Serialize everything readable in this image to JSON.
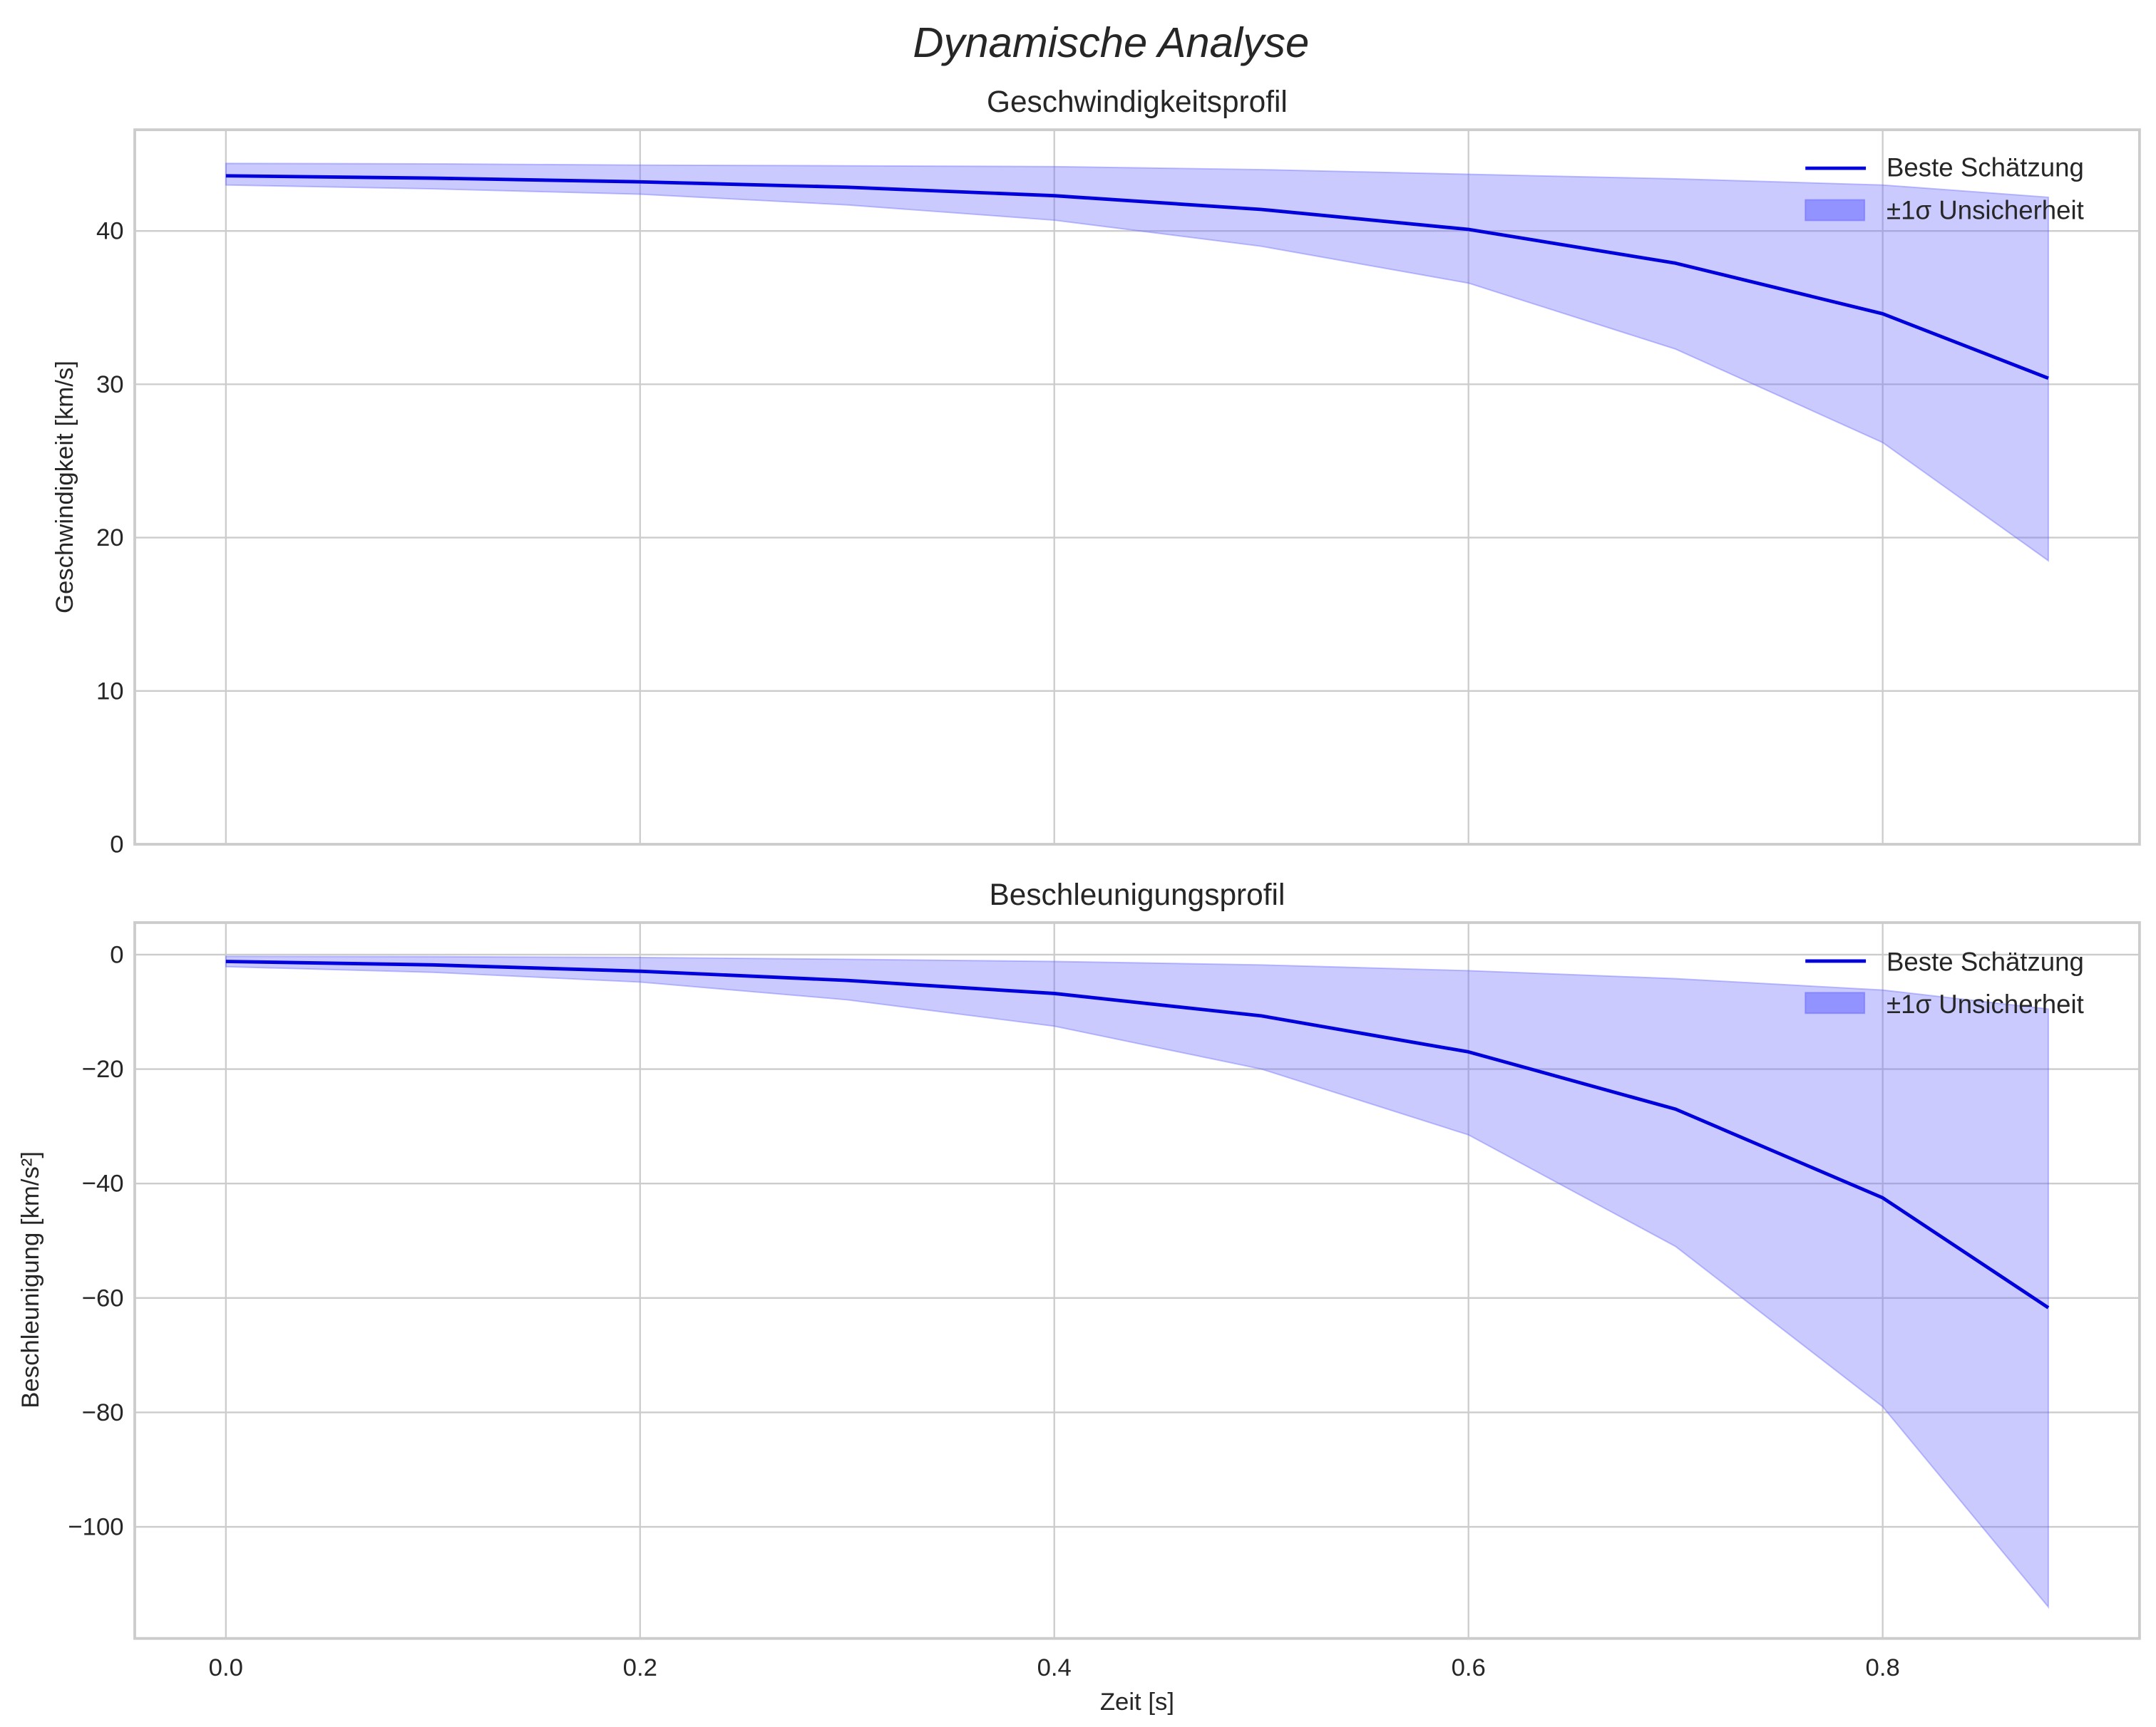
{
  "figure": {
    "suptitle": "Dynamische Analyse"
  },
  "colors": {
    "line": "#0000dd",
    "band": "#6666ff",
    "band_opacity": 0.35,
    "grid": "#cccccc",
    "text": "#262626"
  },
  "legend": {
    "line_label": "Beste Schätzung",
    "band_label": "±1σ Unsicherheit"
  },
  "chart_data": [
    {
      "type": "line",
      "title": "Geschwindigkeitsprofil",
      "xlabel": "",
      "ylabel": "Geschwindigkeit [km/s]",
      "xlim": [
        -0.044,
        0.924
      ],
      "ylim": [
        0,
        46.6
      ],
      "xticks": [
        "0.0",
        "0.2",
        "0.4",
        "0.6",
        "0.8"
      ],
      "yticks": [
        0,
        10,
        20,
        30,
        40
      ],
      "ytick_labels": [
        "0",
        "10",
        "20",
        "30",
        "40"
      ],
      "grid": true,
      "legend_position": "upper right",
      "x": [
        0.0,
        0.1,
        0.2,
        0.3,
        0.4,
        0.5,
        0.6,
        0.7,
        0.8,
        0.88
      ],
      "series": [
        {
          "name": "Beste Schätzung",
          "values": [
            43.6,
            43.45,
            43.2,
            42.85,
            42.3,
            41.4,
            40.1,
            37.9,
            34.6,
            30.4
          ]
        },
        {
          "name": "±1σ Unsicherheit (oben)",
          "values": [
            44.4,
            44.38,
            44.3,
            44.25,
            44.2,
            44.0,
            43.7,
            43.4,
            43.0,
            42.2
          ]
        },
        {
          "name": "±1σ Unsicherheit (unten)",
          "values": [
            43.0,
            42.75,
            42.4,
            41.7,
            40.7,
            39.0,
            36.6,
            32.3,
            26.2,
            18.5
          ]
        }
      ]
    },
    {
      "type": "line",
      "title": "Beschleunigungsprofil",
      "xlabel": "Zeit [s]",
      "ylabel": "Beschleunigung [km/s²]",
      "xlim": [
        -0.044,
        0.924
      ],
      "ylim": [
        -119.5,
        5.6
      ],
      "xticks": [
        "0.0",
        "0.2",
        "0.4",
        "0.6",
        "0.8"
      ],
      "yticks": [
        0,
        -20,
        -40,
        -60,
        -80,
        -100
      ],
      "ytick_labels": [
        "0",
        "−20",
        "−40",
        "−60",
        "−80",
        "−100"
      ],
      "grid": true,
      "legend_position": "upper right",
      "x": [
        0.0,
        0.1,
        0.2,
        0.3,
        0.4,
        0.5,
        0.6,
        0.7,
        0.8,
        0.88
      ],
      "series": [
        {
          "name": "Beste Schätzung",
          "values": [
            -1.2,
            -1.8,
            -2.9,
            -4.5,
            -6.8,
            -10.7,
            -17.0,
            -27.0,
            -42.5,
            -61.7
          ]
        },
        {
          "name": "±1σ Unsicherheit (oben)",
          "values": [
            -0.3,
            -0.35,
            -0.5,
            -0.8,
            -1.2,
            -1.8,
            -2.8,
            -4.2,
            -6.2,
            -9.5
          ]
        },
        {
          "name": "±1σ Unsicherheit (unten)",
          "values": [
            -2.1,
            -3.1,
            -4.8,
            -7.9,
            -12.5,
            -20.0,
            -31.5,
            -51.0,
            -79.0,
            -114.0
          ]
        }
      ]
    }
  ]
}
